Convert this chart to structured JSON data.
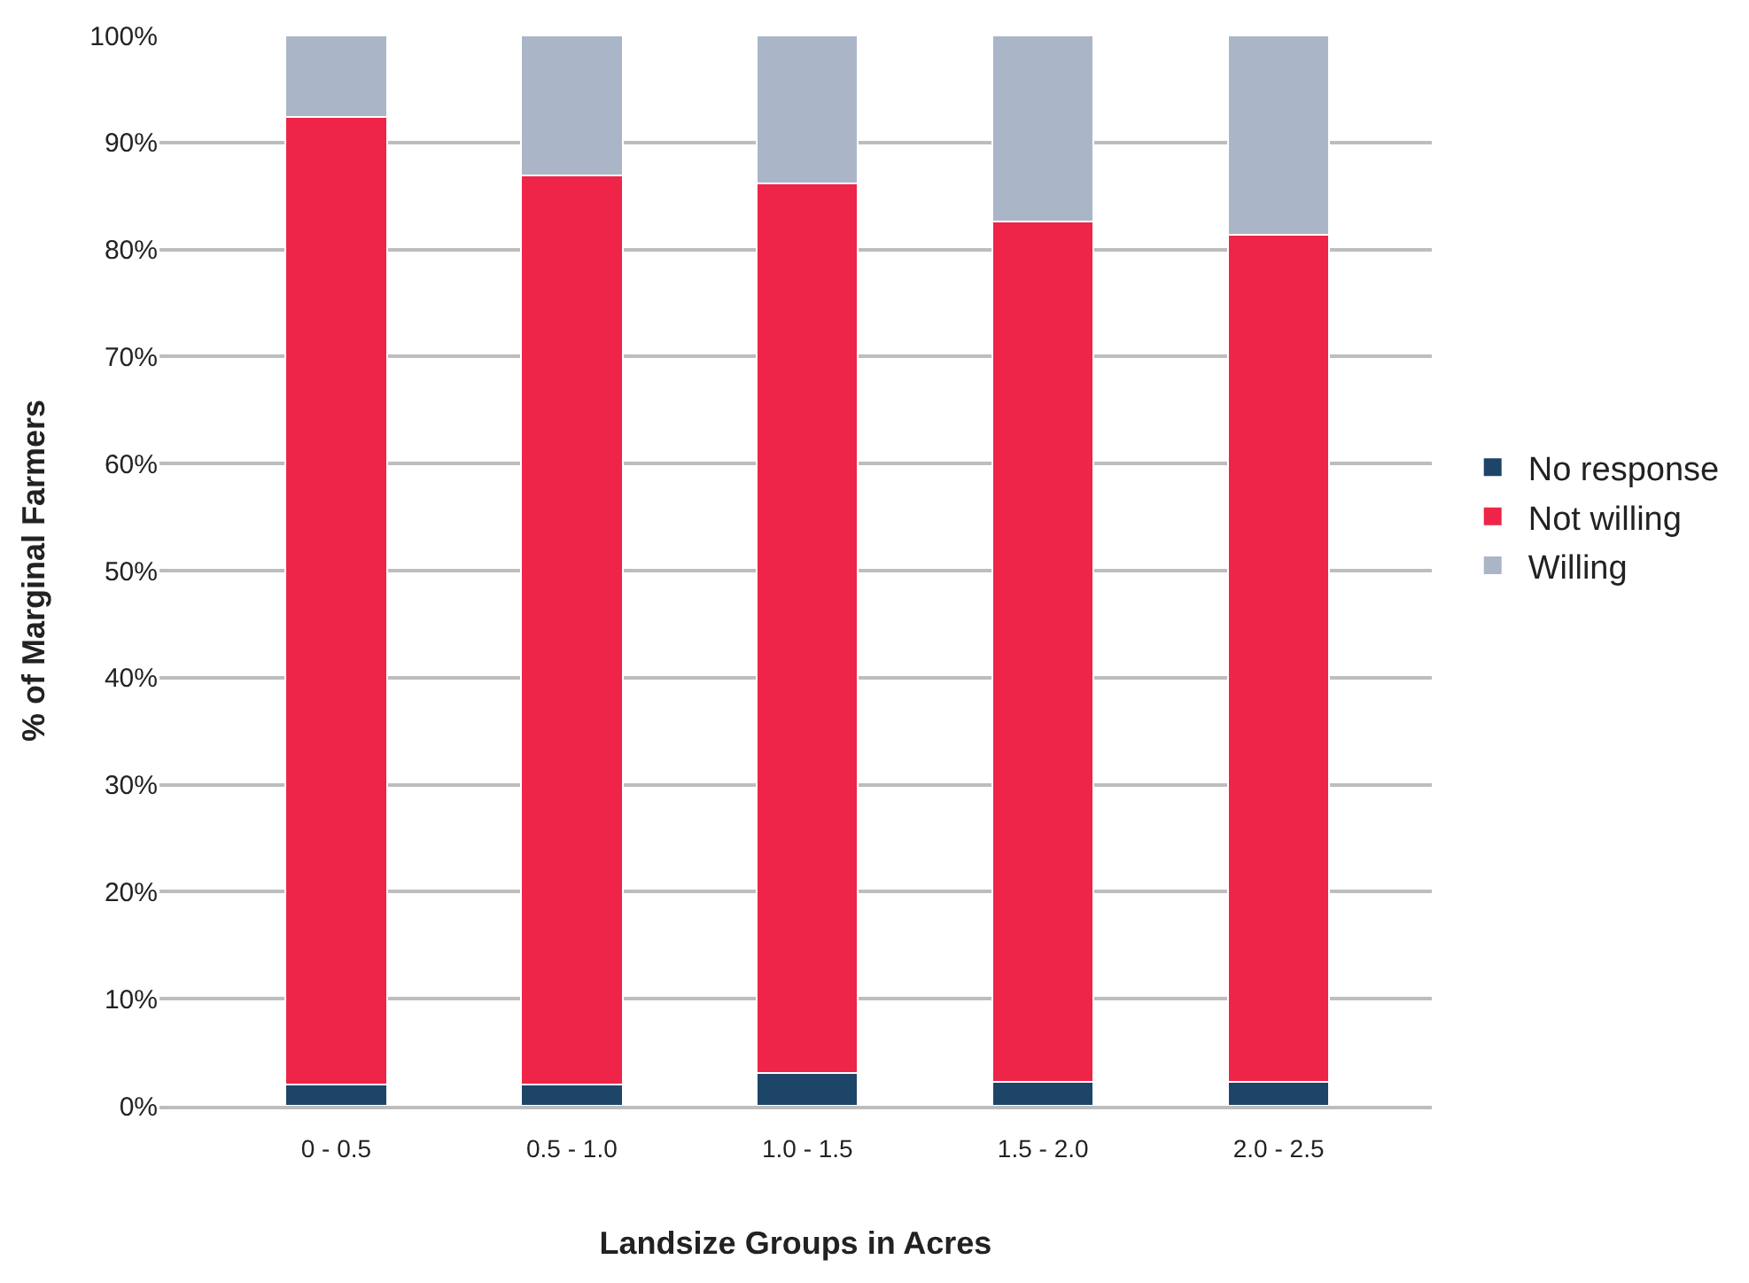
{
  "chart_data": {
    "type": "bar",
    "stacked": true,
    "xlabel": "Landsize Groups in Acres",
    "ylabel": "% of Marginal Farmers",
    "categories": [
      "0 - 0.5",
      "0.5 - 1.0",
      "1.0 - 1.5",
      "1.5 - 2.0",
      "2.0 - 2.5"
    ],
    "series": [
      {
        "name": "No response",
        "color": "#1d4568",
        "values": [
          2.0,
          2.0,
          3.1,
          2.2,
          2.2
        ]
      },
      {
        "name": "Not willing",
        "color": "#ee2449",
        "values": [
          90.4,
          84.9,
          83.1,
          80.4,
          79.2
        ]
      },
      {
        "name": "Willing",
        "color": "#aab6c8",
        "values": [
          7.6,
          13.1,
          13.8,
          17.4,
          18.6
        ]
      }
    ],
    "ylim": [
      0,
      100
    ],
    "yticks": [
      {
        "value": 0,
        "label": "0%"
      },
      {
        "value": 10,
        "label": "10%"
      },
      {
        "value": 20,
        "label": "20%"
      },
      {
        "value": 30,
        "label": "30%"
      },
      {
        "value": 40,
        "label": "40%"
      },
      {
        "value": 50,
        "label": "50%"
      },
      {
        "value": 60,
        "label": "60%"
      },
      {
        "value": 70,
        "label": "70%"
      },
      {
        "value": 80,
        "label": "80%"
      },
      {
        "value": 90,
        "label": "90%"
      },
      {
        "value": 100,
        "label": "100%"
      }
    ],
    "grid": "y",
    "legend": "right"
  }
}
